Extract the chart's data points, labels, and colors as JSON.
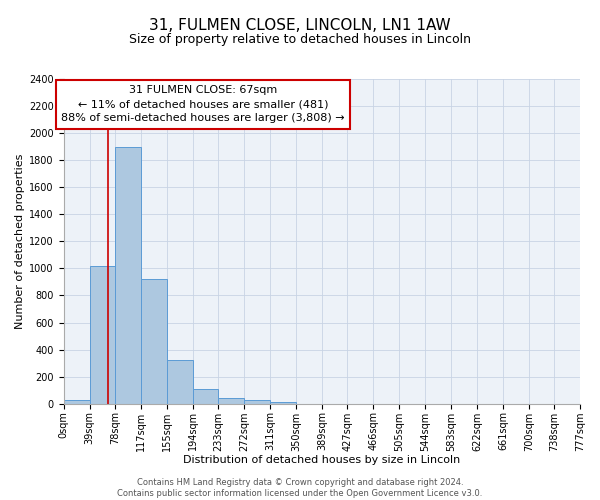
{
  "title_line1": "31, FULMEN CLOSE, LINCOLN, LN1 1AW",
  "title_line2": "Size of property relative to detached houses in Lincoln",
  "xlabel": "Distribution of detached houses by size in Lincoln",
  "ylabel": "Number of detached properties",
  "bar_edges": [
    0,
    39,
    78,
    117,
    155,
    194,
    233,
    272,
    311,
    350,
    389,
    427,
    466,
    505,
    544,
    583,
    622,
    661,
    700,
    738,
    777
  ],
  "bar_heights": [
    25,
    1020,
    1900,
    920,
    320,
    105,
    45,
    25,
    15,
    0,
    0,
    0,
    0,
    0,
    0,
    0,
    0,
    0,
    0,
    0
  ],
  "bar_color": "#adc8e0",
  "bar_edge_color": "#5b9bd5",
  "grid_color": "#c8d4e4",
  "background_color": "#edf2f8",
  "vline_x": 67,
  "vline_color": "#cc0000",
  "ylim": [
    0,
    2400
  ],
  "yticks": [
    0,
    200,
    400,
    600,
    800,
    1000,
    1200,
    1400,
    1600,
    1800,
    2000,
    2200,
    2400
  ],
  "xtick_labels": [
    "0sqm",
    "39sqm",
    "78sqm",
    "117sqm",
    "155sqm",
    "194sqm",
    "233sqm",
    "272sqm",
    "311sqm",
    "350sqm",
    "389sqm",
    "427sqm",
    "466sqm",
    "505sqm",
    "544sqm",
    "583sqm",
    "622sqm",
    "661sqm",
    "700sqm",
    "738sqm",
    "777sqm"
  ],
  "annotation_box_text_line1": "31 FULMEN CLOSE: 67sqm",
  "annotation_box_text_line2": "← 11% of detached houses are smaller (481)",
  "annotation_box_text_line3": "88% of semi-detached houses are larger (3,808) →",
  "footer_line1": "Contains HM Land Registry data © Crown copyright and database right 2024.",
  "footer_line2": "Contains public sector information licensed under the Open Government Licence v3.0.",
  "title_fontsize": 11,
  "subtitle_fontsize": 9,
  "axis_label_fontsize": 8,
  "tick_fontsize": 7,
  "annotation_fontsize": 8,
  "footer_fontsize": 6
}
